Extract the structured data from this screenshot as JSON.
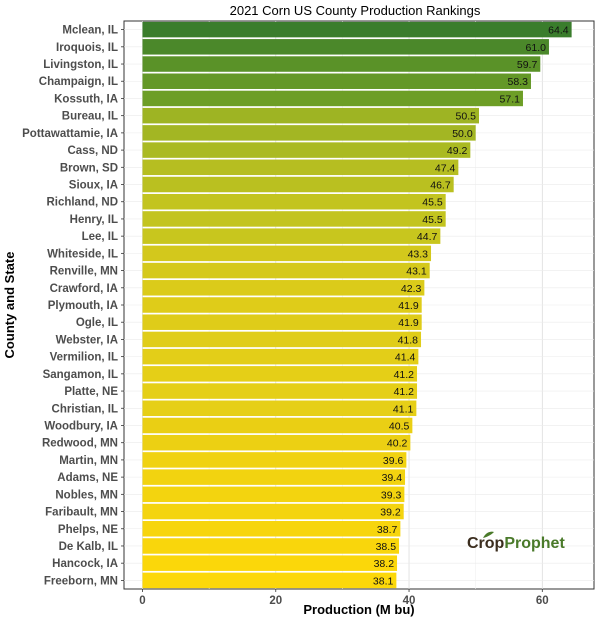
{
  "chart_data": {
    "type": "bar",
    "orientation": "horizontal",
    "title": "2021 Corn US County Production Rankings",
    "xlabel": "Production (M bu)",
    "ylabel": "County and State",
    "xlim": [
      0,
      68
    ],
    "xticks": [
      0,
      20,
      40,
      60
    ],
    "grid": true,
    "categories": [
      "Mclean, IL",
      "Iroquois, IL",
      "Livingston, IL",
      "Champaign, IL",
      "Kossuth, IA",
      "Bureau, IL",
      "Pottawattamie, IA",
      "Cass, ND",
      "Brown, SD",
      "Sioux, IA",
      "Richland, ND",
      "Henry, IL",
      "Lee, IL",
      "Whiteside, IL",
      "Renville, MN",
      "Crawford, IA",
      "Plymouth, IA",
      "Ogle, IL",
      "Webster, IA",
      "Vermilion, IL",
      "Sangamon, IL",
      "Platte, NE",
      "Christian, IL",
      "Woodbury, IA",
      "Redwood, MN",
      "Martin, MN",
      "Adams, NE",
      "Nobles, MN",
      "Faribault, MN",
      "Phelps, NE",
      "De Kalb, IL",
      "Hancock, IA",
      "Freeborn, MN"
    ],
    "values": [
      64.4,
      61.0,
      59.7,
      58.3,
      57.1,
      50.5,
      50.0,
      49.2,
      47.4,
      46.7,
      45.5,
      45.5,
      44.7,
      43.3,
      43.1,
      42.3,
      41.9,
      41.9,
      41.8,
      41.4,
      41.2,
      41.2,
      41.1,
      40.5,
      40.2,
      39.6,
      39.4,
      39.3,
      39.2,
      38.7,
      38.5,
      38.2,
      38.1
    ],
    "labels": [
      "64.4",
      "61.0",
      "59.7",
      "58.3",
      "57.1",
      "50.5",
      "50.0",
      "49.2",
      "47.4",
      "46.7",
      "45.5",
      "45.5",
      "44.7",
      "43.3",
      "43.1",
      "42.3",
      "41.9",
      "41.9",
      "41.8",
      "41.4",
      "41.2",
      "41.2",
      "41.1",
      "40.5",
      "40.2",
      "39.6",
      "39.4",
      "39.3",
      "39.2",
      "38.7",
      "38.5",
      "38.2",
      "38.1"
    ],
    "colors": [
      "#3a7d2c",
      "#4b882a",
      "#5a9228",
      "#649827",
      "#6d9e26",
      "#9eb423",
      "#a3b623",
      "#aaba22",
      "#b6be21",
      "#bac020",
      "#c3c41f",
      "#c3c41f",
      "#c8c61e",
      "#d3c81c",
      "#d5c91c",
      "#dbcb1a",
      "#dfcc19",
      "#dfcc19",
      "#e0cd19",
      "#e3ce18",
      "#e5cf17",
      "#e5cf17",
      "#e6cf17",
      "#eacf14",
      "#ecd013",
      "#f0d211",
      "#f2d310",
      "#f3d40f",
      "#f4d40f",
      "#f7d50d",
      "#f9d60c",
      "#fbd70a",
      "#fcd80a"
    ]
  },
  "logo": {
    "brand_a": "Crop",
    "brand_b": "Prophet",
    "color_a": "#3b2d1e",
    "color_b": "#4a7a2a"
  }
}
